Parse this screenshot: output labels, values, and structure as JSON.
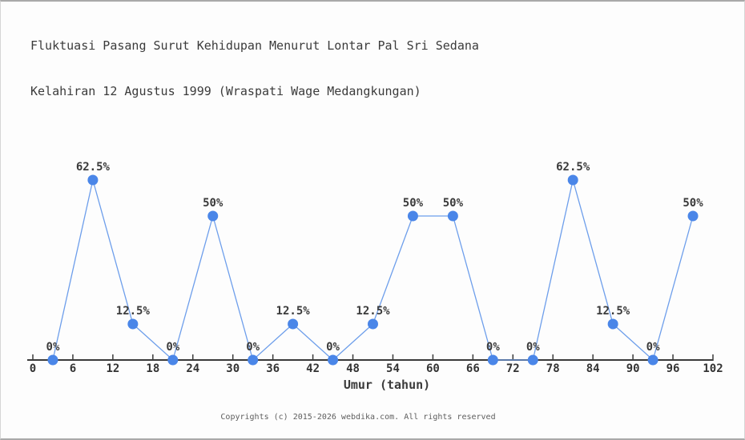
{
  "header": {
    "title_line1": "Fluktuasi Pasang Surut Kehidupan Menurut Lontar Pal Sri Sedana",
    "title_line2": "Kelahiran 12 Agustus 1999 (Wraspati Wage Medangkungan)"
  },
  "footer": {
    "copyright": "Copyrights (c) 2015-2026 webdika.com. All rights reserved"
  },
  "chart_data": {
    "type": "line",
    "title": "Fluktuasi Pasang Surut Kehidupan Menurut Lontar Pal Sri Sedana Kelahiran 12 Agustus 1999 (Wraspati Wage Medangkungan)",
    "xlabel": "Umur (tahun)",
    "ylabel": "",
    "x": [
      3,
      9,
      15,
      21,
      27,
      33,
      39,
      45,
      51,
      57,
      63,
      69,
      75,
      81,
      87,
      93,
      99
    ],
    "values": [
      0,
      62.5,
      12.5,
      0,
      50,
      0,
      12.5,
      0,
      12.5,
      50,
      50,
      0,
      0,
      62.5,
      12.5,
      0,
      50
    ],
    "point_labels": [
      "0%",
      "62.5%",
      "12.5%",
      "0%",
      "50%",
      "0%",
      "12.5%",
      "0%",
      "12.5%",
      "50%",
      "50%",
      "0%",
      "0%",
      "62.5%",
      "12.5%",
      "0%",
      "50%"
    ],
    "x_ticks": [
      0,
      6,
      12,
      18,
      24,
      30,
      36,
      42,
      48,
      54,
      60,
      66,
      72,
      78,
      84,
      90,
      96,
      102
    ],
    "xlim": [
      0,
      102
    ],
    "ylim": [
      0,
      100
    ],
    "grid": false,
    "legend": false,
    "colors": {
      "marker": "#4a86e8",
      "line": "#6d9eeb",
      "axis": "#3a3a3a",
      "tick_label": "#333333",
      "point_label": "#3a3a3a"
    }
  }
}
